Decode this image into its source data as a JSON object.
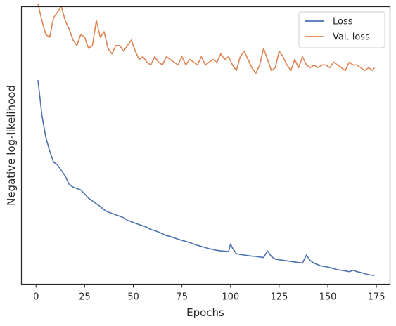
{
  "chart_data": {
    "type": "line",
    "title": "",
    "xlabel": "Epochs",
    "ylabel": "Negative log-likelihood",
    "xlim": [
      -7.5,
      182
    ],
    "ylim": [
      0,
      100
    ],
    "xticks": [
      0,
      25,
      50,
      75,
      100,
      125,
      150,
      175
    ],
    "yticks": [],
    "grid": false,
    "legend": "top-right",
    "series": [
      {
        "name": "Loss",
        "color": "#4c72b0",
        "x": [
          1,
          3,
          5,
          7,
          9,
          11,
          13,
          15,
          17,
          19,
          21,
          23,
          25,
          27,
          29,
          31,
          33,
          35,
          37,
          39,
          41,
          43,
          45,
          47,
          49,
          51,
          53,
          55,
          57,
          59,
          61,
          63,
          65,
          67,
          69,
          71,
          73,
          75,
          77,
          79,
          81,
          83,
          85,
          87,
          89,
          91,
          93,
          95,
          97,
          99,
          100,
          101,
          103,
          105,
          107,
          109,
          111,
          113,
          115,
          117,
          119,
          121,
          123,
          125,
          127,
          129,
          131,
          133,
          135,
          137,
          139,
          141,
          143,
          145,
          147,
          149,
          151,
          153,
          155,
          157,
          159,
          161,
          163,
          165,
          167,
          169,
          171,
          173,
          174
        ],
        "y": [
          73.5,
          61,
          53,
          48,
          44,
          43,
          41,
          39,
          36,
          35,
          34.5,
          34,
          32.5,
          31,
          30,
          29,
          28,
          26.8,
          26,
          25.5,
          25,
          24.5,
          24,
          23,
          22.5,
          22,
          21.5,
          21,
          20.5,
          19.7,
          19.3,
          18.8,
          18.2,
          17.5,
          17.2,
          16.7,
          16.2,
          15.8,
          15.4,
          15,
          14.5,
          14,
          13.6,
          13.2,
          12.8,
          12.5,
          12.2,
          12,
          11.9,
          11.8,
          14.5,
          13,
          11,
          10.7,
          10.5,
          10.3,
          10.1,
          10,
          9.8,
          9.6,
          12,
          10,
          9,
          8.8,
          8.6,
          8.4,
          8.2,
          8,
          7.8,
          7.6,
          10.5,
          8.5,
          7.5,
          7,
          6.5,
          6.3,
          6,
          5.6,
          5.2,
          5,
          4.8,
          4.5,
          5,
          4.5,
          4.2,
          3.8,
          3.4,
          3.2,
          3.1
        ]
      },
      {
        "name": "Val. loss",
        "color": "#dd8452",
        "x": [
          1,
          3,
          5,
          7,
          9,
          11,
          13,
          15,
          17,
          19,
          21,
          23,
          25,
          27,
          29,
          31,
          33,
          35,
          37,
          39,
          41,
          43,
          45,
          47,
          49,
          51,
          53,
          55,
          57,
          59,
          61,
          63,
          65,
          67,
          69,
          71,
          73,
          75,
          77,
          79,
          81,
          83,
          85,
          87,
          89,
          91,
          93,
          95,
          97,
          99,
          101,
          103,
          105,
          107,
          109,
          111,
          113,
          115,
          117,
          119,
          121,
          123,
          125,
          127,
          129,
          131,
          133,
          135,
          137,
          139,
          141,
          143,
          145,
          147,
          149,
          151,
          153,
          155,
          157,
          159,
          161,
          163,
          165,
          167,
          169,
          171,
          173,
          174
        ],
        "y": [
          101,
          95,
          90,
          89,
          96,
          98,
          100,
          95,
          92,
          88,
          86,
          90,
          89,
          85,
          86,
          95,
          89,
          91,
          85,
          83,
          86,
          86,
          84,
          86,
          88,
          84,
          81,
          82,
          80,
          79,
          82,
          80,
          79,
          82,
          81,
          80,
          79,
          82,
          79,
          81,
          80,
          79,
          82,
          79,
          80,
          81,
          80,
          83,
          81,
          82,
          79,
          77,
          82,
          84,
          81,
          78,
          76,
          79,
          85,
          81,
          77,
          78,
          84,
          82,
          79,
          77,
          81,
          78,
          82,
          79,
          78,
          79,
          78,
          79,
          79,
          78,
          80,
          79,
          78,
          77,
          80,
          79,
          79,
          78,
          77,
          78,
          77,
          78
        ]
      }
    ]
  }
}
